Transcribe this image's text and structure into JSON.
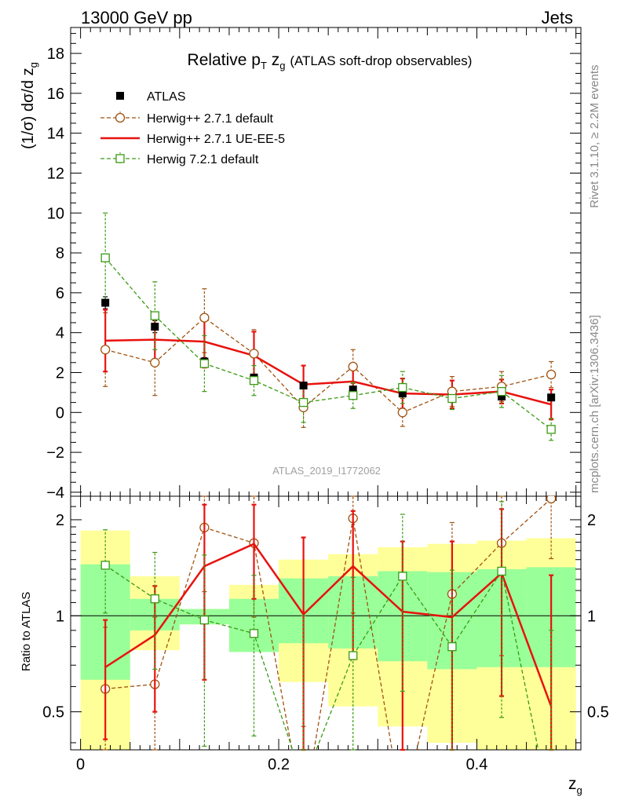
{
  "header": {
    "left": "13000 GeV pp",
    "right": "Jets"
  },
  "title": {
    "main": "Relative p",
    "sub_T": "T",
    "zg": "z",
    "zg_sub": "g",
    "suffix": "(ATLAS soft-drop observables)"
  },
  "side_labels": {
    "rivet": "Rivet 3.1.10, ≥ 2.2M events",
    "mcplots": "mcplots.cern.ch [arXiv:1306.3436]"
  },
  "watermark": "ATLAS_2019_I1772062",
  "axes": {
    "y_main_label": "(1/σ) dσ/d z",
    "y_main_sub": "g",
    "y_ratio_label": "Ratio to ATLAS",
    "x_label": "z",
    "x_label_sub": "g"
  },
  "colors": {
    "atlas": "#000000",
    "herwigpp_default": "#a0520f",
    "herwigpp_ueee5": "#e8120e",
    "herwig7": "#3a9a14",
    "band_inner": "#99ff99",
    "band_outer": "#ffff99"
  },
  "chart_data": {
    "type": "line",
    "x_bins": [
      [
        0.0,
        0.05
      ],
      [
        0.05,
        0.1
      ],
      [
        0.1,
        0.15
      ],
      [
        0.15,
        0.2
      ],
      [
        0.2,
        0.25
      ],
      [
        0.25,
        0.3
      ],
      [
        0.3,
        0.35
      ],
      [
        0.35,
        0.4
      ],
      [
        0.4,
        0.45
      ],
      [
        0.45,
        0.5
      ]
    ],
    "x": [
      0.025,
      0.075,
      0.125,
      0.175,
      0.225,
      0.275,
      0.325,
      0.375,
      0.425,
      0.475
    ],
    "xlim": [
      -0.01,
      0.505
    ],
    "x_ticks": [
      "0",
      "0.2",
      "0.4"
    ],
    "x_tick_values": [
      0,
      0.2,
      0.4
    ],
    "main": {
      "ylim": [
        -4.2,
        19.3
      ],
      "y_ticks": [
        "−4",
        "−2",
        "0",
        "2",
        "4",
        "6",
        "8",
        "10",
        "12",
        "14",
        "16",
        "18"
      ],
      "y_tick_values": [
        -4,
        -2,
        0,
        2,
        4,
        6,
        8,
        10,
        12,
        14,
        16,
        18
      ],
      "series": [
        {
          "name": "ATLAS",
          "key": "atlas",
          "style": "square-filled",
          "values": [
            5.5,
            4.3,
            2.55,
            1.75,
            1.35,
            1.15,
            0.95,
            0.95,
            0.8,
            0.75
          ],
          "err": [
            0.3,
            0.3,
            0.2,
            0.15,
            0.12,
            0.1,
            0.1,
            0.1,
            0.1,
            0.1
          ]
        },
        {
          "name": "Herwig++ 2.7.1 default",
          "key": "herwigpp_default",
          "style": "circle-open-dashed",
          "values": [
            3.15,
            2.5,
            4.75,
            2.95,
            0.25,
            2.3,
            0.0,
            1.05,
            1.3,
            1.9
          ],
          "err_lo": [
            1.85,
            1.65,
            1.75,
            1.2,
            1.0,
            0.85,
            0.7,
            0.75,
            0.75,
            0.65
          ],
          "err_hi": [
            1.85,
            1.65,
            1.45,
            1.2,
            1.0,
            0.85,
            0.7,
            0.75,
            0.75,
            0.65
          ]
        },
        {
          "name": "Herwig++ 2.7.1 UE-EE-5",
          "key": "herwigpp_ueee5",
          "style": "line-solid",
          "values": [
            3.6,
            3.65,
            3.55,
            2.85,
            1.4,
            1.55,
            0.95,
            0.9,
            1.05,
            0.4
          ],
          "err": [
            1.55,
            1.25,
            1.3,
            1.2,
            0.95,
            0.85,
            0.75,
            0.7,
            0.6,
            0.75
          ]
        },
        {
          "name": "Herwig 7.2.1 default",
          "key": "herwig7",
          "style": "square-open-dashed",
          "values": [
            7.75,
            4.85,
            2.45,
            1.6,
            0.5,
            0.85,
            1.25,
            0.7,
            1.05,
            -0.85
          ],
          "err": [
            2.25,
            1.7,
            1.4,
            0.75,
            1.0,
            0.65,
            0.8,
            0.55,
            0.8,
            0.55
          ]
        }
      ]
    },
    "ratio": {
      "ylim": [
        0.38,
        2.37
      ],
      "log_scale": true,
      "reference": 1,
      "y_ticks": [
        "0.5",
        "1",
        "2"
      ],
      "y_tick_values": [
        0.5,
        1,
        2
      ],
      "band_inner": [
        [
          0.63,
          1.45
        ],
        [
          0.9,
          1.13
        ],
        [
          0.94,
          1.05
        ],
        [
          0.77,
          1.13
        ],
        [
          0.82,
          1.31
        ],
        [
          0.79,
          1.33
        ],
        [
          0.72,
          1.38
        ],
        [
          0.68,
          1.37
        ],
        [
          0.69,
          1.4
        ],
        [
          0.69,
          1.42
        ]
      ],
      "band_outer": [
        [
          0.3,
          1.85
        ],
        [
          0.78,
          1.33
        ],
        [
          0.94,
          1.05
        ],
        [
          0.8,
          1.25
        ],
        [
          0.62,
          1.5
        ],
        [
          0.52,
          1.56
        ],
        [
          0.45,
          1.64
        ],
        [
          0.4,
          1.68
        ],
        [
          0.38,
          1.72
        ],
        [
          0.34,
          1.75
        ]
      ],
      "series": [
        {
          "key": "herwigpp_default",
          "values": [
            0.59,
            0.61,
            1.89,
            1.69,
            0.2,
            2.02,
            0.0,
            1.17,
            1.69,
            2.33
          ],
          "err_lo": [
            0.33,
            0.38,
            0.7,
            0.7,
            0.25,
            1.0,
            0.0,
            0.79,
            0.94,
            0.82
          ],
          "err_hi": [
            0.33,
            0.38,
            0.7,
            0.7,
            0.25,
            1.0,
            0.0,
            0.79,
            0.94,
            0.82
          ]
        },
        {
          "key": "herwigpp_ueee5",
          "values": [
            0.69,
            0.87,
            1.43,
            1.68,
            1.01,
            1.43,
            1.03,
            0.99,
            1.36,
            0.52
          ],
          "err": [
            0.28,
            0.37,
            0.8,
            0.55,
            0.75,
            0.7,
            0.68,
            0.72,
            0.8,
            0.82
          ]
        },
        {
          "key": "herwig7",
          "values": [
            1.44,
            1.13,
            0.97,
            0.88,
            0.3,
            0.75,
            1.33,
            0.8,
            1.38,
            0.2
          ],
          "err": [
            0.42,
            0.45,
            0.58,
            0.46,
            0.7,
            0.57,
            0.75,
            0.59,
            0.9,
            0.7
          ]
        }
      ]
    },
    "legend_placement": "top-left",
    "grid": false
  }
}
